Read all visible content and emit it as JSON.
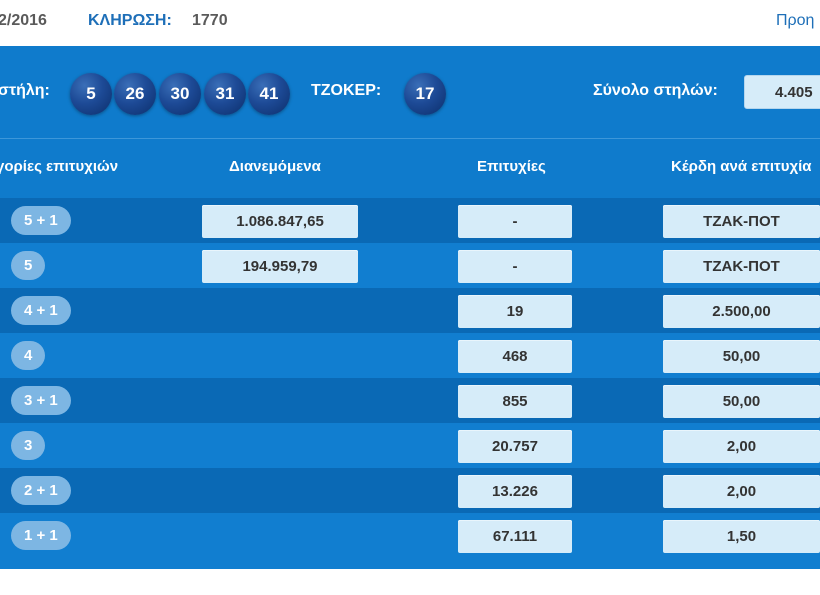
{
  "header": {
    "date_fragment": "2/2016",
    "draw_label": "ΚΛΗΡΩΣΗ:",
    "draw_number": "1770",
    "prev_link": "Προη"
  },
  "results": {
    "column_label": "στήλη:",
    "numbers": [
      "5",
      "26",
      "30",
      "31",
      "41"
    ],
    "joker_label": "ΤΖΟΚΕΡ:",
    "joker": "17",
    "total_label": "Σύνολο στηλών:",
    "total_value": "4.405"
  },
  "table": {
    "headers": {
      "category": "γορίες επιτυχιών",
      "distributed": "Διανεμόμενα",
      "winners": "Επιτυχίες",
      "prize": "Κέρδη ανά επιτυχία"
    },
    "rows": [
      {
        "category": "5 + 1",
        "distributed": "1.086.847,65",
        "winners": "-",
        "prize": "ΤΖΑΚ-ΠΟΤ"
      },
      {
        "category": "5",
        "distributed": "194.959,79",
        "winners": "-",
        "prize": "ΤΖΑΚ-ΠΟΤ"
      },
      {
        "category": "4 + 1",
        "distributed": "",
        "winners": "19",
        "prize": "2.500,00"
      },
      {
        "category": "4",
        "distributed": "",
        "winners": "468",
        "prize": "50,00"
      },
      {
        "category": "3 + 1",
        "distributed": "",
        "winners": "855",
        "prize": "50,00"
      },
      {
        "category": "3",
        "distributed": "",
        "winners": "20.757",
        "prize": "2,00"
      },
      {
        "category": "2 + 1",
        "distributed": "",
        "winners": "13.226",
        "prize": "2,00"
      },
      {
        "category": "1 + 1",
        "distributed": "",
        "winners": "67.111",
        "prize": "1,50"
      }
    ]
  },
  "colors": {
    "band_blue": "#0f7bcc",
    "row_dark": "#0a69b5",
    "row_light": "#117ed0",
    "ball_blue": "#1d4a96",
    "cell_bg": "#d6ecf9",
    "pill_bg": "#7db6e3",
    "link_blue": "#1e6fb8"
  }
}
